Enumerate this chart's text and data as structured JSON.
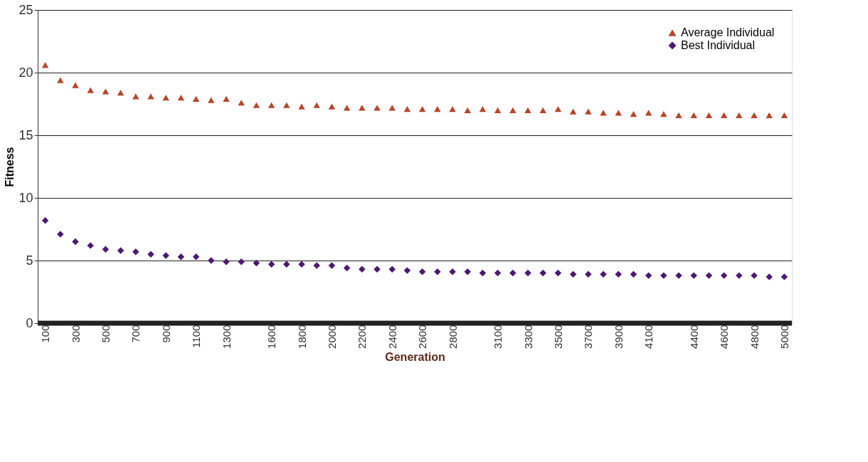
{
  "chart_data": {
    "type": "scatter",
    "xlabel": "Generation",
    "ylabel": "Fitness",
    "categories": [
      "100",
      null,
      "300",
      null,
      "500",
      null,
      "700",
      null,
      "900",
      null,
      "1100",
      null,
      "1300",
      null,
      null,
      "1600",
      null,
      "1800",
      null,
      "2000",
      null,
      "2200",
      null,
      "2400",
      null,
      "2600",
      null,
      "2800",
      null,
      null,
      "3100",
      null,
      "3300",
      null,
      "3500",
      null,
      "3700",
      null,
      "3900",
      null,
      "4100",
      null,
      null,
      "4400",
      null,
      "4600",
      null,
      "4800",
      null,
      "5000"
    ],
    "series": [
      {
        "name": "Average Individual",
        "color": "#b5472a",
        "marker": "triangle",
        "values": [
          20.6,
          19.4,
          19.0,
          18.6,
          18.5,
          18.4,
          18.1,
          18.1,
          18.0,
          18.0,
          17.9,
          17.8,
          17.9,
          17.6,
          17.4,
          17.4,
          17.4,
          17.3,
          17.4,
          17.3,
          17.2,
          17.2,
          17.2,
          17.2,
          17.1,
          17.1,
          17.1,
          17.1,
          17.0,
          17.1,
          17.0,
          17.0,
          17.0,
          17.0,
          17.1,
          16.9,
          16.9,
          16.8,
          16.8,
          16.7,
          16.8,
          16.7,
          16.6,
          16.6,
          16.6,
          16.6,
          16.6,
          16.6,
          16.6,
          16.6
        ]
      },
      {
        "name": "Best Individual",
        "color": "#4b1a6e",
        "marker": "diamond",
        "values": [
          8.2,
          7.1,
          6.5,
          6.2,
          5.9,
          5.8,
          5.7,
          5.5,
          5.4,
          5.3,
          5.3,
          5.0,
          4.9,
          4.9,
          4.8,
          4.7,
          4.7,
          4.7,
          4.6,
          4.6,
          4.4,
          4.3,
          4.3,
          4.3,
          4.2,
          4.1,
          4.1,
          4.1,
          4.1,
          4.0,
          4.0,
          4.0,
          4.0,
          4.0,
          4.0,
          3.9,
          3.9,
          3.9,
          3.9,
          3.9,
          3.8,
          3.8,
          3.8,
          3.8,
          3.8,
          3.8,
          3.8,
          3.8,
          3.7,
          3.7
        ]
      }
    ],
    "ylim": [
      0,
      25
    ],
    "yticks": [
      0,
      5,
      10,
      15,
      20,
      25
    ],
    "grid": "y",
    "legend": "top right"
  }
}
